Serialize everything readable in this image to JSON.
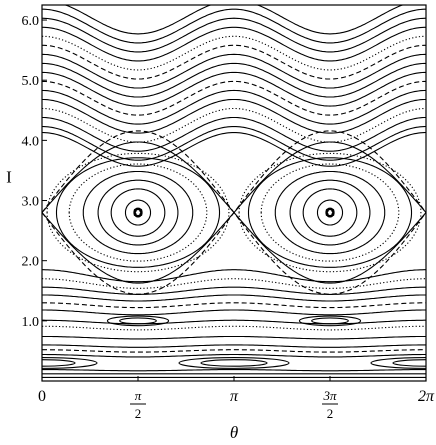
{
  "chart_data": {
    "type": "scatter",
    "title": "",
    "xlabel": "θ",
    "ylabel": "I",
    "xlim": [
      0,
      6.2832
    ],
    "ylim": [
      0,
      6.25
    ],
    "grid": false,
    "legend": "none",
    "x_ticks": [
      {
        "value": 0,
        "label": "0"
      },
      {
        "value": 1.5708,
        "label": "π/2",
        "num": "π",
        "den": "2"
      },
      {
        "value": 3.1416,
        "label": "π"
      },
      {
        "value": 4.7124,
        "label": "3π/2",
        "num": "3π",
        "den": "2"
      },
      {
        "value": 6.2832,
        "label": "2π",
        "plain": "2π"
      }
    ],
    "y_ticks": [
      {
        "value": 1.0,
        "label": "1.0"
      },
      {
        "value": 2.0,
        "label": "2.0"
      },
      {
        "value": 3.0,
        "label": "3.0"
      },
      {
        "value": 4.0,
        "label": "4.0"
      },
      {
        "value": 5.0,
        "label": "5.0"
      },
      {
        "value": 6.0,
        "label": "6.0"
      }
    ],
    "resonance_islands": [
      {
        "center_theta": 1.5708,
        "center_I": 2.8,
        "halfwidth_I": 1.15
      },
      {
        "center_theta": 4.7124,
        "center_I": 2.8,
        "halfwidth_I": 1.15
      }
    ],
    "island_orbit_levels": [
      0.06,
      0.2,
      0.38,
      0.52,
      0.66,
      0.78,
      0.88,
      0.95
    ],
    "wavy_curves_upper": [
      {
        "I0": 6.05,
        "amp": 0.28,
        "style": "solid"
      },
      {
        "I0": 5.9,
        "amp": 0.28,
        "style": "solid"
      },
      {
        "I0": 5.75,
        "amp": 0.28,
        "style": "solid"
      },
      {
        "I0": 5.6,
        "amp": 0.28,
        "style": "solid"
      },
      {
        "I0": 5.45,
        "amp": 0.28,
        "style": "dotted"
      },
      {
        "I0": 5.3,
        "amp": 0.28,
        "style": "dashed"
      },
      {
        "I0": 5.15,
        "amp": 0.28,
        "style": "solid"
      },
      {
        "I0": 5.0,
        "amp": 0.28,
        "style": "solid"
      },
      {
        "I0": 4.85,
        "amp": 0.28,
        "style": "solid"
      },
      {
        "I0": 4.7,
        "amp": 0.28,
        "style": "dashed"
      },
      {
        "I0": 4.55,
        "amp": 0.28,
        "style": "solid"
      },
      {
        "I0": 4.4,
        "amp": 0.28,
        "style": "solid"
      },
      {
        "I0": 4.25,
        "amp": 0.28,
        "style": "dotted"
      },
      {
        "I0": 4.1,
        "amp": 0.28,
        "style": "solid"
      },
      {
        "I0": 3.95,
        "amp": 0.28,
        "style": "solid"
      },
      {
        "I0": 3.85,
        "amp": 0.28,
        "style": "solid"
      }
    ],
    "wavy_curves_lower": [
      {
        "I0": 1.75,
        "amp": 0.1,
        "style": "solid"
      },
      {
        "I0": 1.62,
        "amp": 0.08,
        "style": "dotted"
      },
      {
        "I0": 1.5,
        "amp": 0.06,
        "style": "solid"
      },
      {
        "I0": 1.38,
        "amp": 0.05,
        "style": "solid"
      },
      {
        "I0": 1.26,
        "amp": 0.04,
        "style": "dashed"
      },
      {
        "I0": 1.14,
        "amp": 0.04,
        "style": "solid"
      },
      {
        "I0": 0.98,
        "amp": 0.03,
        "style": "solid"
      },
      {
        "I0": 0.88,
        "amp": 0.03,
        "style": "dotted"
      },
      {
        "I0": 0.72,
        "amp": 0.02,
        "style": "solid"
      },
      {
        "I0": 0.58,
        "amp": 0.02,
        "style": "solid"
      },
      {
        "I0": 0.5,
        "amp": 0.02,
        "style": "dashed"
      },
      {
        "I0": 0.42,
        "amp": 0.02,
        "style": "solid"
      },
      {
        "I0": 0.18,
        "amp": 0.01,
        "style": "solid"
      },
      {
        "I0": 0.12,
        "amp": 0.0,
        "style": "solid"
      },
      {
        "I0": 0.06,
        "amp": 0.0,
        "style": "solid"
      }
    ],
    "small_islands": [
      {
        "center_theta": 1.5708,
        "center_I": 1.0,
        "halfwidth_theta": 0.5,
        "halfwidth_I": 0.08
      },
      {
        "center_theta": 4.7124,
        "center_I": 1.0,
        "halfwidth_theta": 0.5,
        "halfwidth_I": 0.08
      },
      {
        "center_theta": 0.0,
        "center_I": 0.3,
        "halfwidth_theta": 0.9,
        "halfwidth_I": 0.09
      },
      {
        "center_theta": 3.1416,
        "center_I": 0.3,
        "halfwidth_theta": 0.9,
        "halfwidth_I": 0.09
      },
      {
        "center_theta": 6.2832,
        "center_I": 0.3,
        "halfwidth_theta": 0.9,
        "halfwidth_I": 0.09
      }
    ]
  }
}
